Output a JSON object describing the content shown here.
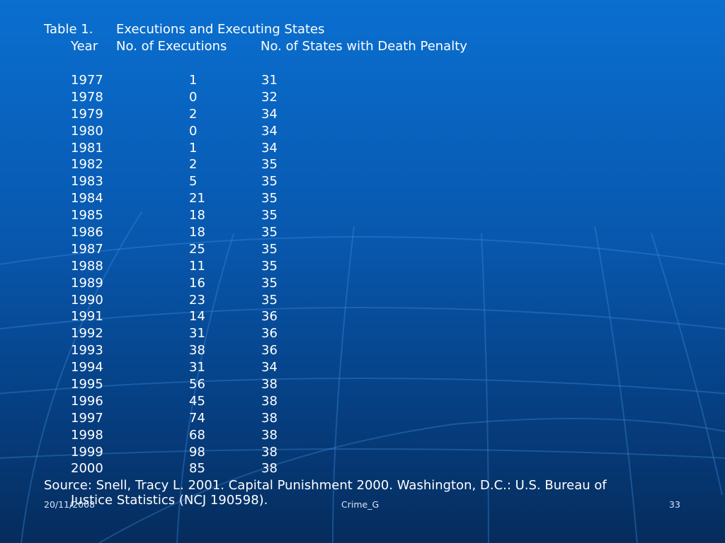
{
  "title": {
    "label": "Table 1.",
    "text": "Executions and Executing States"
  },
  "headers": {
    "year": "Year",
    "executions": "No. of Executions",
    "states": "No. of States with Death Penalty"
  },
  "rows": [
    {
      "year": "1977",
      "executions": "1",
      "states": "31"
    },
    {
      "year": "1978",
      "executions": "0",
      "states": "32"
    },
    {
      "year": "1979",
      "executions": "2",
      "states": "34"
    },
    {
      "year": "1980",
      "executions": "0",
      "states": "34"
    },
    {
      "year": "1981",
      "executions": "1",
      "states": "34"
    },
    {
      "year": "1982",
      "executions": "2",
      "states": "35"
    },
    {
      "year": "1983",
      "executions": "5",
      "states": "35"
    },
    {
      "year": "1984",
      "executions": "21",
      "states": "35"
    },
    {
      "year": "1985",
      "executions": "18",
      "states": "35"
    },
    {
      "year": "1986",
      "executions": "18",
      "states": "35"
    },
    {
      "year": "1987",
      "executions": "25",
      "states": "35"
    },
    {
      "year": "1988",
      "executions": "11",
      "states": "35"
    },
    {
      "year": "1989",
      "executions": "16",
      "states": "35"
    },
    {
      "year": "1990",
      "executions": "23",
      "states": "35"
    },
    {
      "year": "1991",
      "executions": "14",
      "states": "36"
    },
    {
      "year": "1992",
      "executions": "31",
      "states": "36"
    },
    {
      "year": "1993",
      "executions": "38",
      "states": "36"
    },
    {
      "year": "1994",
      "executions": "31",
      "states": "34"
    },
    {
      "year": "1995",
      "executions": "56",
      "states": "38"
    },
    {
      "year": "1996",
      "executions": "45",
      "states": "38"
    },
    {
      "year": "1997",
      "executions": "74",
      "states": "38"
    },
    {
      "year": "1998",
      "executions": "68",
      "states": "38"
    },
    {
      "year": "1999",
      "executions": "98",
      "states": "38"
    },
    {
      "year": "2000",
      "executions": "85",
      "states": "38"
    }
  ],
  "source": {
    "line1": "Source: Snell, Tracy L. 2001. Capital Punishment 2000. Washington, D.C.: U.S. Bureau of",
    "line2": "Justice Statistics (NCJ 190598)."
  },
  "footer": {
    "date": "20/11/2008",
    "center": "Crime_G",
    "page": "33"
  },
  "colors": {
    "background_top": "#0a6fd0",
    "background_bottom": "#052c5c",
    "text": "#ffffff"
  }
}
